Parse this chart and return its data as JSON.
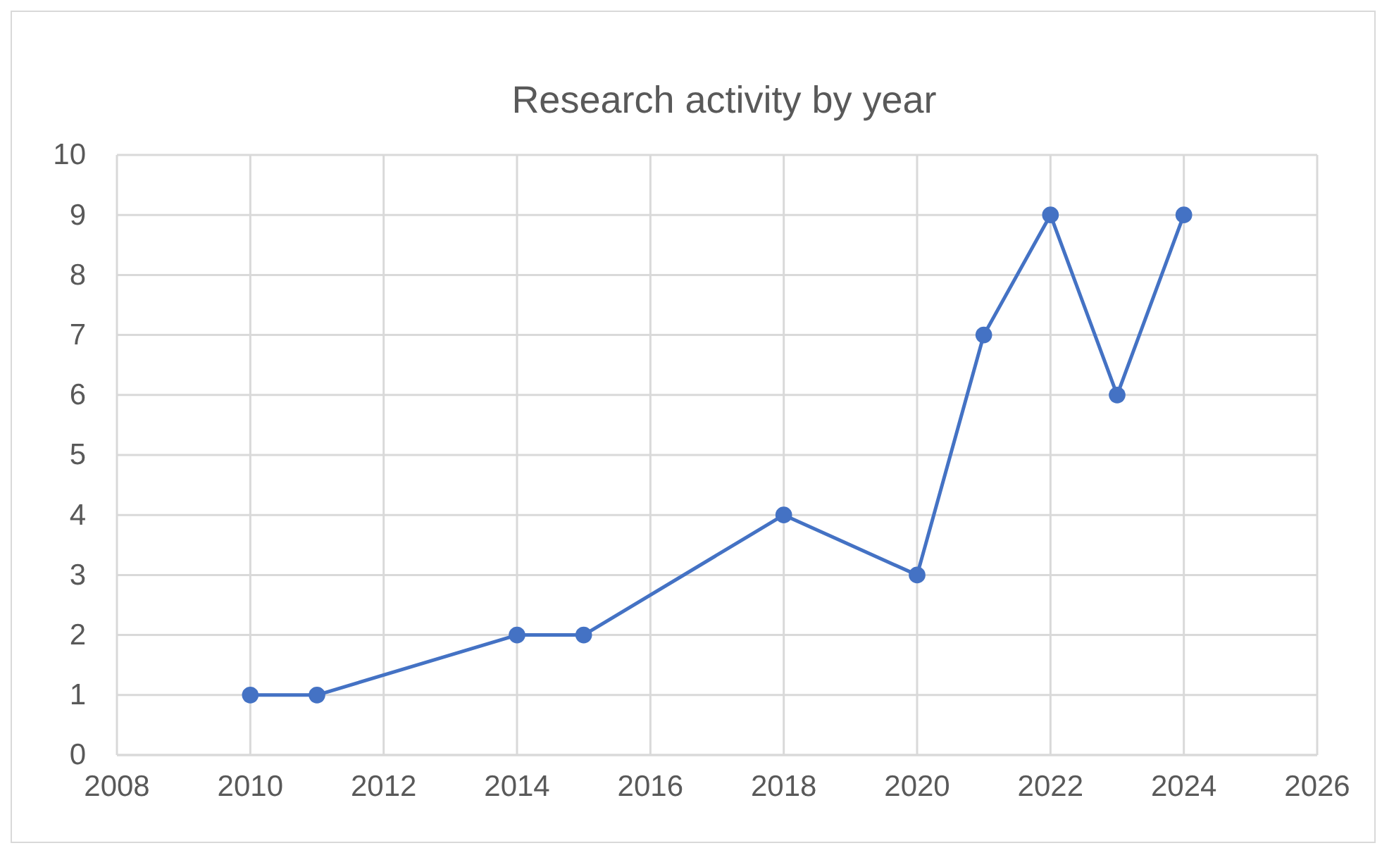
{
  "chart_data": {
    "type": "line",
    "title": "Research activity by year",
    "x": [
      2010,
      2011,
      2014,
      2015,
      2018,
      2020,
      2021,
      2022,
      2023,
      2024
    ],
    "series": [
      {
        "color": "#4472c4",
        "values": [
          1,
          1,
          2,
          2,
          4,
          3,
          7,
          9,
          6,
          9
        ]
      }
    ],
    "xlim": [
      2008,
      2026
    ],
    "xticks": [
      2008,
      2010,
      2012,
      2014,
      2016,
      2018,
      2020,
      2022,
      2024,
      2026
    ],
    "ylim": [
      0,
      10
    ],
    "yticks": [
      0,
      1,
      2,
      3,
      4,
      5,
      6,
      7,
      8,
      9,
      10
    ],
    "grid": true,
    "marker": "circle",
    "line_style": "solid"
  }
}
